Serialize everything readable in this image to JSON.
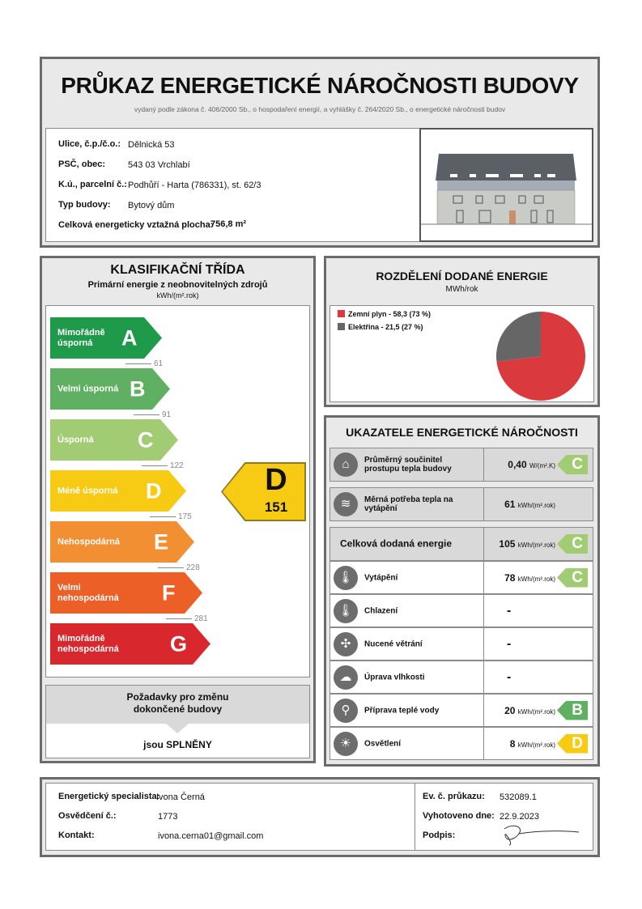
{
  "header": {
    "title": "PRŮKAZ ENERGETICKÉ NÁROČNOSTI BUDOVY",
    "subtitle": "vydaný podle zákona č. 406/2000 Sb., o hospodaření energií, a vyhlášky č. 264/2020 Sb., o energetické náročnosti budov"
  },
  "building": {
    "street_label": "Ulice, č.p./č.o.:",
    "street": "Dělnická 53",
    "zip_label": "PSČ, obec:",
    "zip": "543 03 Vrchlabí",
    "parcel_label": "K.ú., parcelní č.:",
    "parcel": "Podhůří - Harta (786331), st. 62/3",
    "type_label": "Typ budovy:",
    "type": "Bytový dům",
    "area_label": "Celková energeticky vztažná plocha:",
    "area": "756,8 m²"
  },
  "classification": {
    "title": "KLASIFIKAČNÍ TŘÍDA",
    "subtitle": "Primární energie z neobnovitelných zdrojů",
    "unit": "kWh/(m².rok)",
    "classes": [
      {
        "letter": "A",
        "name": "Mimořádně úsporná",
        "color": "#1e9a4a",
        "threshold": "61"
      },
      {
        "letter": "B",
        "name": "Velmi úsporná",
        "color": "#5fb062",
        "threshold": "91"
      },
      {
        "letter": "C",
        "name": "Úsporná",
        "color": "#a1cc74",
        "threshold": "122"
      },
      {
        "letter": "D",
        "name": "Méně úsporná",
        "color": "#f7cb14",
        "threshold": "175"
      },
      {
        "letter": "E",
        "name": "Nehospodárná",
        "color": "#f28f33",
        "threshold": "228"
      },
      {
        "letter": "F",
        "name": "Velmi nehospodárná",
        "color": "#ec5f27",
        "threshold": "281"
      },
      {
        "letter": "G",
        "name": "Mimořádně nehospodárná",
        "color": "#d8282d",
        "threshold": null
      }
    ],
    "result_class": "D",
    "result_value": "151",
    "result_color": "#f7cb14"
  },
  "requirements": {
    "title_line1": "Požadavky pro změnu",
    "title_line2": "dokončené budovy",
    "status": "jsou SPLNĚNY"
  },
  "distribution": {
    "title": "ROZDĚLENÍ DODANÉ ENERGIE",
    "unit": "MWh/rok",
    "series": [
      {
        "label": "Zemní plyn - 58,3 (73 %)",
        "value": 58.3,
        "percent": 73,
        "color": "#da3a3e"
      },
      {
        "label": "Elektřina - 21,5 (27 %)",
        "value": 21.5,
        "percent": 27,
        "color": "#666666"
      }
    ]
  },
  "indicators": {
    "title": "UKAZATELE ENERGETICKÉ NÁROČNOSTI",
    "rows": [
      {
        "icon": "house-icon",
        "glyph": "⌂",
        "label": "Průměrný součinitel prostupu tepla budovy",
        "value": "0,40",
        "unit": "W/(m².K)",
        "class": "C",
        "class_color": "#a1cc74",
        "gray": true
      },
      {
        "icon": "heat-demand-icon",
        "glyph": "≋",
        "label": "Měrná potřeba tepla na vytápění",
        "value": "61",
        "unit": "kWh/(m².rok)",
        "class": null,
        "gray": true
      },
      {
        "icon": null,
        "label": "Celková dodaná energie",
        "value": "105",
        "unit": "kWh/(m².rok)",
        "class": "C",
        "class_color": "#a1cc74",
        "gray": true
      },
      {
        "icon": "heating-thermometer-icon",
        "glyph": "🌡",
        "label": "Vytápění",
        "value": "78",
        "unit": "kWh/(m².rok)",
        "class": "C",
        "class_color": "#a1cc74"
      },
      {
        "icon": "cooling-thermometer-icon",
        "glyph": "🌡",
        "label": "Chlazení",
        "value": "-"
      },
      {
        "icon": "fan-icon",
        "glyph": "✣",
        "label": "Nucené větrání",
        "value": "-"
      },
      {
        "icon": "humidity-cloud-icon",
        "glyph": "☁",
        "label": "Úprava vlhkosti",
        "value": "-"
      },
      {
        "icon": "water-tap-icon",
        "glyph": "⚲",
        "label": "Příprava teplé vody",
        "value": "20",
        "unit": "kWh/(m².rok)",
        "class": "B",
        "class_color": "#5fb062"
      },
      {
        "icon": "light-bulb-icon",
        "glyph": "☀",
        "label": "Osvětlení",
        "value": "8",
        "unit": "kWh/(m².rok)",
        "class": "D",
        "class_color": "#f7cb14"
      }
    ]
  },
  "footer": {
    "specialist_label": "Energetický specialista:",
    "specialist": "Ivona Černá",
    "cert_label": "Osvědčení č.:",
    "cert": "1773",
    "contact_label": "Kontakt:",
    "contact": "ivona.cerna01@gmail.com",
    "ev_label": "Ev. č. průkazu:",
    "ev": "532089.1",
    "date_label": "Vyhotoveno dne:",
    "date": "22.9.2023",
    "signature_label": "Podpis:"
  }
}
